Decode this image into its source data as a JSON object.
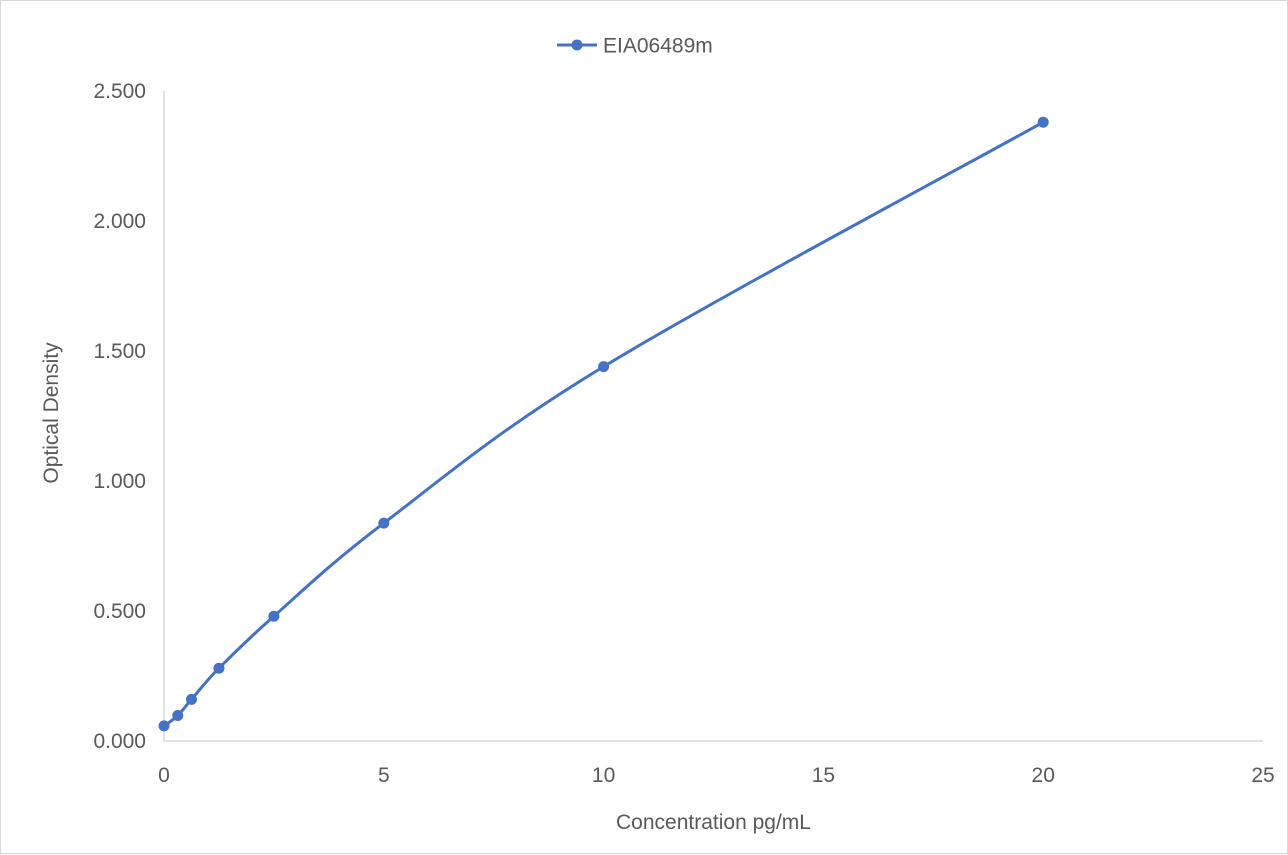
{
  "chart_data": {
    "type": "line",
    "title": "",
    "xlabel": "Concentration pg/mL",
    "ylabel": "Optical Density",
    "xlim": [
      0,
      25
    ],
    "ylim": [
      0,
      2.5
    ],
    "x_ticks": [
      "0",
      "5",
      "10",
      "15",
      "20",
      "25"
    ],
    "y_ticks": [
      "0.000",
      "0.500",
      "1.000",
      "1.500",
      "2.000",
      "2.500"
    ],
    "grid": false,
    "legend_position": "top",
    "series": [
      {
        "name": "EIA06489m",
        "color": "#4472c4",
        "marker": "circle",
        "x": [
          0,
          0.313,
          0.625,
          1.25,
          2.5,
          5,
          10,
          20
        ],
        "y": [
          0.058,
          0.098,
          0.16,
          0.28,
          0.48,
          0.838,
          1.44,
          2.38
        ]
      }
    ]
  }
}
